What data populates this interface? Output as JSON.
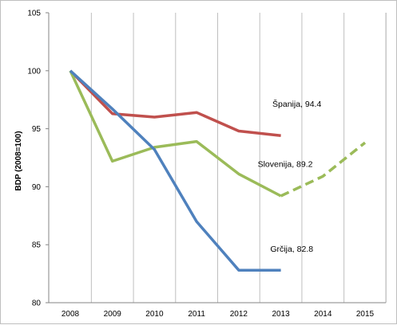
{
  "chart_data": {
    "type": "line",
    "x": [
      2008,
      2009,
      2010,
      2011,
      2012,
      2013,
      2014,
      2015
    ],
    "xlabels": [
      "2008",
      "2009",
      "2010",
      "2011",
      "2012",
      "2013",
      "2014",
      "2015"
    ],
    "ylabel": "BDP (2008=100)",
    "ylim": [
      80,
      105
    ],
    "yticks": [
      80,
      85,
      90,
      95,
      100,
      105
    ],
    "grid": "vertical",
    "colors": {
      "spain": "#c0504d",
      "slovenia": "#9bbb59",
      "greece": "#4f81bd",
      "grid": "#bfbfbf",
      "axis": "#868686"
    },
    "series": [
      {
        "key": "spain",
        "label": "Španija, 94.4",
        "color": "#c0504d",
        "style": "solid",
        "x": [
          2008,
          2009,
          2010,
          2011,
          2012,
          2013
        ],
        "values": [
          100,
          96.3,
          96.0,
          96.4,
          94.8,
          94.4
        ]
      },
      {
        "key": "slovenia",
        "label": "Slovenija, 89.2",
        "color": "#9bbb59",
        "style": "solid",
        "x": [
          2008,
          2009,
          2010,
          2011,
          2012,
          2013
        ],
        "values": [
          100,
          92.2,
          93.4,
          93.9,
          91.1,
          89.2
        ]
      },
      {
        "key": "slovenia-forecast",
        "label": "",
        "color": "#9bbb59",
        "style": "dashed",
        "x": [
          2013,
          2014,
          2015
        ],
        "values": [
          89.2,
          90.9,
          93.8
        ]
      },
      {
        "key": "greece",
        "label": "Grčija, 82.8",
        "color": "#4f81bd",
        "style": "solid",
        "x": [
          2008,
          2009,
          2010,
          2011,
          2012,
          2013
        ],
        "values": [
          100,
          96.7,
          93.2,
          87.0,
          82.8,
          82.8
        ]
      }
    ]
  }
}
